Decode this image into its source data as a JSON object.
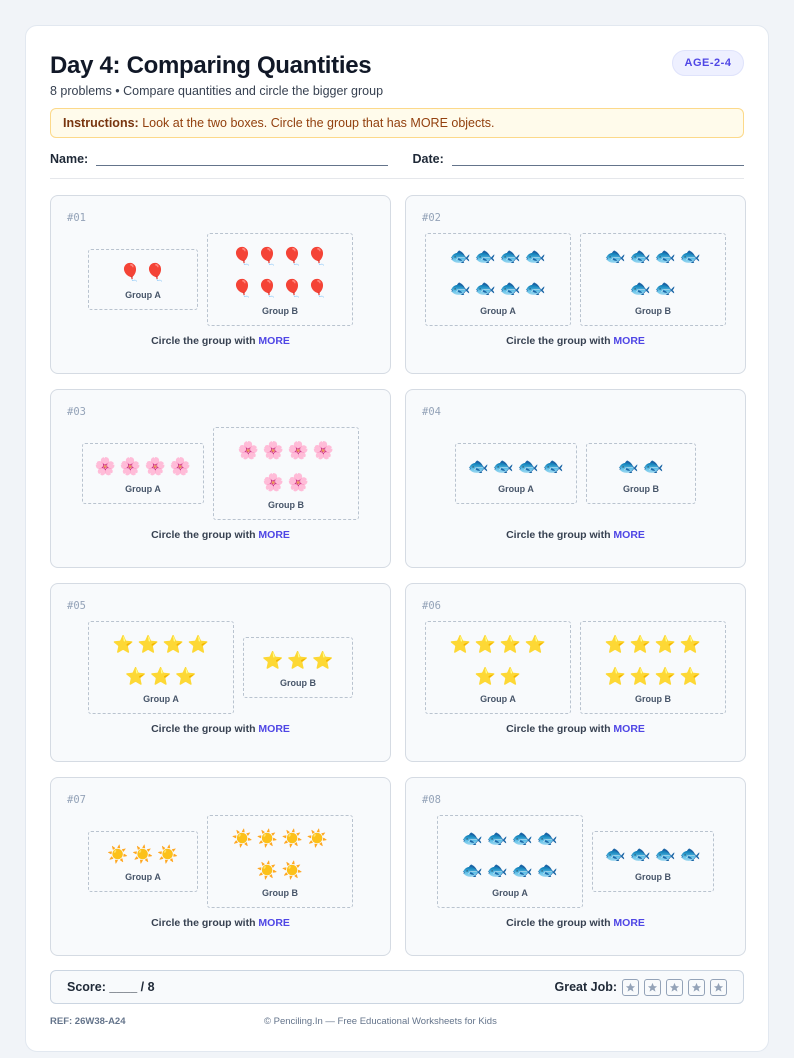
{
  "header": {
    "title": "Day 4: Comparing Quantities",
    "subtitle": "8 problems • Compare quantities and circle the bigger group",
    "badge": "AGE-2-4"
  },
  "instructions": {
    "label": "Instructions:",
    "text": "Look at the two boxes. Circle the group that has MORE objects."
  },
  "fields": {
    "name": "Name:",
    "date": "Date:"
  },
  "group_labels": [
    "Group A",
    "Group B"
  ],
  "prompt": {
    "text": "Circle the group with",
    "emphasis": "MORE"
  },
  "problems": [
    {
      "number": "#01",
      "groups": [
        {
          "emoji": "🎈",
          "count": 2
        },
        {
          "emoji": "🎈",
          "count": 8
        }
      ]
    },
    {
      "number": "#02",
      "groups": [
        {
          "emoji": "🐟",
          "count": 8
        },
        {
          "emoji": "🐟",
          "count": 6
        }
      ]
    },
    {
      "number": "#03",
      "groups": [
        {
          "emoji": "🌸",
          "count": 4
        },
        {
          "emoji": "🌸",
          "count": 6
        }
      ]
    },
    {
      "number": "#04",
      "groups": [
        {
          "emoji": "🐟",
          "count": 4
        },
        {
          "emoji": "🐟",
          "count": 2
        }
      ]
    },
    {
      "number": "#05",
      "groups": [
        {
          "emoji": "⭐",
          "count": 7
        },
        {
          "emoji": "⭐",
          "count": 3
        }
      ]
    },
    {
      "number": "#06",
      "groups": [
        {
          "emoji": "⭐",
          "count": 6
        },
        {
          "emoji": "⭐",
          "count": 8
        }
      ]
    },
    {
      "number": "#07",
      "groups": [
        {
          "emoji": "☀️",
          "count": 3
        },
        {
          "emoji": "☀️",
          "count": 6
        }
      ]
    },
    {
      "number": "#08",
      "groups": [
        {
          "emoji": "🐟",
          "count": 8
        },
        {
          "emoji": "🐟",
          "count": 4
        }
      ]
    }
  ],
  "footer": {
    "score": "Score: ____ / 8",
    "great_job": "Great Job:",
    "ref": "REF: 26W38-A24",
    "credit": "© Penciling.In — Free Educational Worksheets for Kids"
  }
}
